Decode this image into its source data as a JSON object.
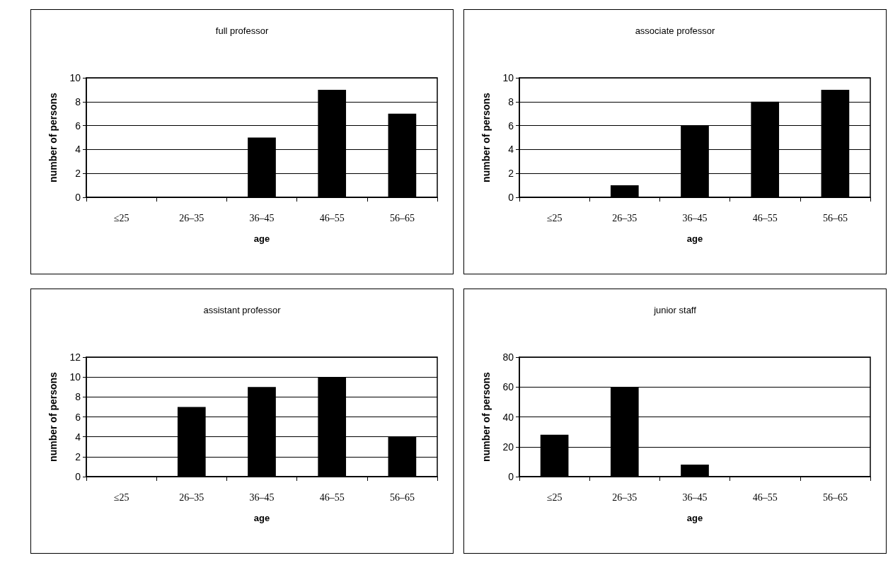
{
  "chart_data": [
    {
      "type": "bar",
      "title": "full professor",
      "xlabel": "age",
      "ylabel": "number of persons",
      "categories": [
        "≤25",
        "26–35",
        "36–45",
        "46–55",
        "56–65"
      ],
      "values": [
        0,
        0,
        5,
        9,
        7
      ],
      "color": "#000000",
      "ylim": [
        0,
        10
      ],
      "yticks": [
        0,
        2,
        4,
        6,
        8,
        10
      ],
      "grid": "y"
    },
    {
      "type": "bar",
      "title": "associate professor",
      "xlabel": "age",
      "ylabel": "number of persons",
      "categories": [
        "≤25",
        "26–35",
        "36–45",
        "46–55",
        "56–65"
      ],
      "values": [
        0,
        1,
        6,
        8,
        9
      ],
      "color": "#000000",
      "ylim": [
        0,
        10
      ],
      "yticks": [
        0,
        2,
        4,
        6,
        8,
        10
      ],
      "grid": "y"
    },
    {
      "type": "bar",
      "title": "assistant professor",
      "xlabel": "age",
      "ylabel": "number of persons",
      "categories": [
        "≤25",
        "26–35",
        "36–45",
        "46–55",
        "56–65"
      ],
      "values": [
        0,
        7,
        9,
        10,
        4
      ],
      "color": "#000000",
      "ylim": [
        0,
        12
      ],
      "yticks": [
        0,
        2,
        4,
        6,
        8,
        10,
        12
      ],
      "grid": "y"
    },
    {
      "type": "bar",
      "title": "junior staff",
      "xlabel": "age",
      "ylabel": "number of persons",
      "categories": [
        "≤25",
        "26–35",
        "36–45",
        "46–55",
        "56–65"
      ],
      "values": [
        28,
        60,
        8,
        0,
        0
      ],
      "color": "#000000",
      "ylim": [
        0,
        80
      ],
      "yticks": [
        0,
        20,
        40,
        60,
        80
      ],
      "grid": "y"
    }
  ]
}
